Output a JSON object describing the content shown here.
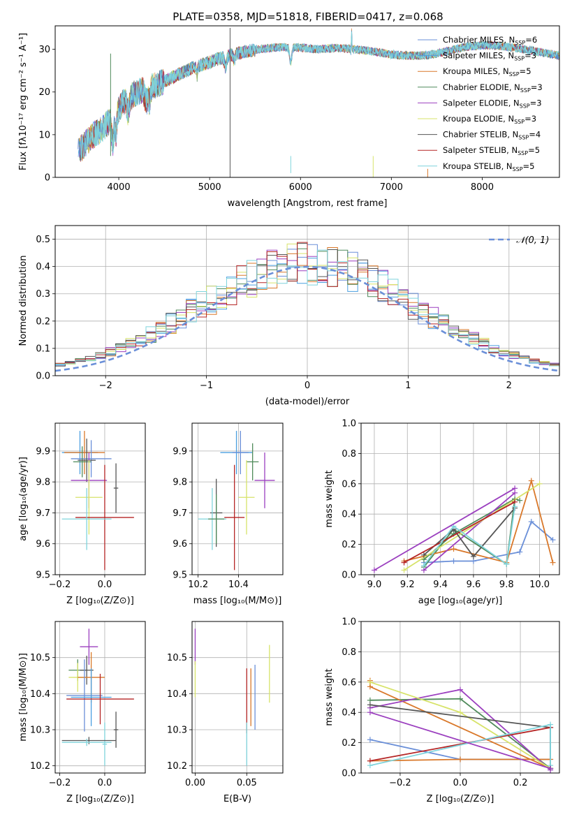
{
  "title": "PLATE=0358, MJD=51818, FIBERID=0417, z=0.068",
  "models": [
    {
      "name": "Chabrier MILES",
      "nssp": "6",
      "color": "#6a8fd8"
    },
    {
      "name": "Salpeter MILES",
      "nssp": "3",
      "color": "#4a9fe0"
    },
    {
      "name": "Kroupa MILES",
      "nssp": "5",
      "color": "#d9782a"
    },
    {
      "name": "Chabrier ELODIE",
      "nssp": "3",
      "color": "#4f8a5a"
    },
    {
      "name": "Salpeter ELODIE",
      "nssp": "3",
      "color": "#9b3fbf"
    },
    {
      "name": "Kroupa ELODIE",
      "nssp": "3",
      "color": "#d7e36a"
    },
    {
      "name": "Chabrier STELIB",
      "nssp": "4",
      "color": "#555555"
    },
    {
      "name": "Salpeter STELIB",
      "nssp": "5",
      "color": "#b52525"
    },
    {
      "name": "Kroupa STELIB",
      "nssp": "5",
      "color": "#7fd4dc"
    }
  ],
  "chart_data": [
    {
      "id": "spectrum",
      "type": "line",
      "xlabel": "wavelength [Angstrom, rest frame]",
      "ylabel": "Flux [fλ10⁻¹⁷ erg cm⁻² s⁻¹ A⁻¹]",
      "xlim": [
        3300,
        8850
      ],
      "ylim": [
        0,
        35.5
      ],
      "xticks": [
        4000,
        5000,
        6000,
        7000,
        8000
      ],
      "yticks": [
        0,
        10,
        20,
        30
      ],
      "grid": false,
      "legend_position": "top-right",
      "continuum": [
        [
          3550,
          6
        ],
        [
          3700,
          9.5
        ],
        [
          3850,
          12
        ],
        [
          3950,
          14.5
        ],
        [
          4050,
          17.5
        ],
        [
          4200,
          20
        ],
        [
          4400,
          21.5
        ],
        [
          4600,
          23.5
        ],
        [
          4800,
          25.5
        ],
        [
          5000,
          27
        ],
        [
          5200,
          28.5
        ],
        [
          5400,
          29.5
        ],
        [
          5600,
          30.2
        ],
        [
          5800,
          30.5
        ],
        [
          6000,
          30.4
        ],
        [
          6200,
          30
        ],
        [
          6400,
          30.3
        ],
        [
          6600,
          30
        ],
        [
          6800,
          29.5
        ],
        [
          7000,
          28.8
        ],
        [
          7200,
          28.5
        ],
        [
          7400,
          28.6
        ],
        [
          7600,
          29.5
        ],
        [
          7800,
          30.5
        ],
        [
          8000,
          31
        ],
        [
          8200,
          30.8
        ],
        [
          8400,
          30.2
        ],
        [
          8600,
          29.5
        ],
        [
          8850,
          28.5
        ]
      ],
      "features": [
        [
          3934,
          4,
          6
        ],
        [
          3969,
          3,
          5
        ],
        [
          4102,
          4,
          3
        ],
        [
          4304,
          6,
          3
        ],
        [
          4340,
          3,
          3
        ],
        [
          4861,
          2,
          2
        ],
        [
          5175,
          4,
          2.5
        ],
        [
          5270,
          3,
          1.5
        ],
        [
          5892,
          4,
          3.5
        ],
        [
          6563,
          2,
          1.5
        ],
        [
          6563,
          1,
          -6
        ]
      ],
      "spikes": [
        [
          3910,
          29,
          5
        ],
        [
          5225,
          35,
          0
        ],
        [
          5893,
          5,
          1
        ],
        [
          6800,
          0,
          5
        ],
        [
          7400,
          0,
          2
        ]
      ]
    },
    {
      "id": "residuals",
      "type": "histogram",
      "xlabel": "(data-model)/error",
      "ylabel": "Normed distribution",
      "xlim": [
        -2.5,
        2.5
      ],
      "ylim": [
        0,
        0.55
      ],
      "xticks": [
        -2,
        -1,
        0,
        1,
        2
      ],
      "yticks": [
        0.0,
        0.1,
        0.2,
        0.3,
        0.4,
        0.5
      ],
      "grid": true,
      "legend_position": "top-right",
      "reference_label": "𝒩(0, 1)",
      "bin_width": 0.1,
      "bin_start": -2.5
    },
    {
      "id": "age-vs-z",
      "type": "scatter",
      "xlabel": "Z [log₁₀(Z/Z⊙)]",
      "ylabel": "age  [log₁₀(age/yr)]",
      "xlim": [
        -0.22,
        0.18
      ],
      "ylim": [
        9.5,
        9.99
      ],
      "xticks": [
        -0.2,
        0.0
      ],
      "yticks": [
        9.5,
        9.6,
        9.7,
        9.8,
        9.9
      ],
      "grid": true,
      "points": [
        {
          "x": -0.11,
          "xerr": 0.08,
          "y": 9.895,
          "yerr": 0.07
        },
        {
          "x": -0.09,
          "xerr": 0.09,
          "y": 9.895,
          "yerr": 0.07
        },
        {
          "x": -0.06,
          "xerr": 0.09,
          "y": 9.875,
          "yerr": 0.06
        },
        {
          "x": -0.1,
          "xerr": 0.04,
          "y": 9.865,
          "yerr": 0.05
        },
        {
          "x": -0.08,
          "xerr": 0.04,
          "y": 9.87,
          "yerr": 0.07
        },
        {
          "x": -0.07,
          "xerr": 0.08,
          "y": 9.805,
          "yerr": 0.09
        },
        {
          "x": 0.05,
          "xerr": 0.01,
          "y": 9.78,
          "yerr": 0.08
        },
        {
          "x": -0.07,
          "xerr": 0.06,
          "y": 9.75,
          "yerr": 0.12
        },
        {
          "x": 0.0,
          "xerr": 0.13,
          "y": 9.685,
          "yerr": 0.17
        },
        {
          "x": -0.08,
          "xerr": 0.11,
          "y": 9.68,
          "yerr": 0.1
        }
      ]
    },
    {
      "id": "age-vs-mass",
      "type": "scatter",
      "xlabel": "mass [log₁₀(M/M⊙)]",
      "ylabel": "",
      "xlim": [
        10.17,
        10.62
      ],
      "ylim": [
        9.5,
        9.99
      ],
      "xticks": [
        10.2,
        10.4
      ],
      "yticks": [
        9.5,
        9.6,
        9.7,
        9.8,
        9.9
      ],
      "grid": true,
      "points": [
        {
          "x": 10.39,
          "xerr": 0.08,
          "y": 9.895,
          "yerr": 0.07
        },
        {
          "x": 10.41,
          "xerr": 0.04,
          "y": 9.895,
          "yerr": 0.07
        },
        {
          "x": 10.47,
          "xerr": 0.03,
          "y": 9.865,
          "yerr": 0.06
        },
        {
          "x": 10.53,
          "xerr": 0.05,
          "y": 9.805,
          "yerr": 0.09
        },
        {
          "x": 10.29,
          "xerr": 0.03,
          "y": 9.7,
          "yerr": 0.11
        },
        {
          "x": 10.44,
          "xerr": 0.04,
          "y": 9.75,
          "yerr": 0.12
        },
        {
          "x": 10.38,
          "xerr": 0.05,
          "y": 9.685,
          "yerr": 0.17
        },
        {
          "x": 10.27,
          "xerr": 0.07,
          "y": 9.68,
          "yerr": 0.1
        },
        {
          "x": 10.29,
          "xerr": 0.04,
          "y": 9.68,
          "yerr": 0.08
        }
      ]
    },
    {
      "id": "weight-vs-age",
      "type": "line",
      "xlabel": "age  [log₁₀(age/yr)]",
      "ylabel": "mass weight",
      "xlim": [
        8.92,
        10.12
      ],
      "ylim": [
        0,
        1.0
      ],
      "xticks": [
        9.0,
        9.2,
        9.4,
        9.6,
        9.8,
        10.0
      ],
      "yticks": [
        0.0,
        0.2,
        0.4,
        0.6,
        0.8,
        1.0
      ],
      "grid": true,
      "series": [
        {
          "x": [
            9.3,
            9.48,
            9.6,
            9.88,
            9.95,
            10.08
          ],
          "y": [
            0.08,
            0.09,
            0.09,
            0.15,
            0.35,
            0.23
          ]
        },
        {
          "x": [
            9.3,
            9.48,
            9.8,
            9.85
          ],
          "y": [
            0.05,
            0.3,
            0.07,
            0.5
          ]
        },
        {
          "x": [
            9.18,
            9.48,
            9.8,
            9.95,
            10.08
          ],
          "y": [
            0.09,
            0.17,
            0.08,
            0.62,
            0.08
          ]
        },
        {
          "x": [
            9.3,
            9.48,
            9.85,
            9.88
          ],
          "y": [
            0.1,
            0.27,
            0.5,
            0.49
          ]
        },
        {
          "x": [
            9.3,
            9.85
          ],
          "y": [
            0.03,
            0.54
          ]
        },
        {
          "x": [
            9.18,
            10.0
          ],
          "y": [
            0.03,
            0.6
          ]
        },
        {
          "x": [
            9.3,
            9.48,
            9.6,
            9.85
          ],
          "y": [
            0.13,
            0.3,
            0.12,
            0.44
          ]
        },
        {
          "x": [
            9.18,
            9.85
          ],
          "y": [
            0.08,
            0.48
          ]
        },
        {
          "x": [
            9.3,
            9.48,
            9.8,
            9.85
          ],
          "y": [
            0.06,
            0.32,
            0.07,
            0.45
          ]
        },
        {
          "x": [
            9.0,
            9.85
          ],
          "y": [
            0.03,
            0.57
          ]
        }
      ]
    },
    {
      "id": "mass-vs-z",
      "type": "scatter",
      "xlabel": "Z [log₁₀(Z/Z⊙)]",
      "ylabel": "mass [log₁₀(M/M⊙)]",
      "xlim": [
        -0.22,
        0.18
      ],
      "ylim": [
        10.18,
        10.6
      ],
      "xticks": [
        -0.2,
        0.0
      ],
      "yticks": [
        10.2,
        10.3,
        10.4,
        10.5
      ],
      "grid": true,
      "points": [
        {
          "x": -0.07,
          "xerr": 0.04,
          "y": 10.53,
          "yerr": 0.05
        },
        {
          "x": -0.12,
          "xerr": 0.04,
          "y": 10.465,
          "yerr": 0.03
        },
        {
          "x": -0.08,
          "xerr": 0.03,
          "y": 10.465,
          "yerr": 0.04
        },
        {
          "x": -0.12,
          "xerr": 0.04,
          "y": 10.445,
          "yerr": 0.04
        },
        {
          "x": -0.06,
          "xerr": 0.06,
          "y": 10.445,
          "yerr": 0.07
        },
        {
          "x": -0.09,
          "xerr": 0.08,
          "y": 10.395,
          "yerr": 0.1
        },
        {
          "x": -0.06,
          "xerr": 0.09,
          "y": 10.39,
          "yerr": 0.08
        },
        {
          "x": -0.02,
          "xerr": 0.15,
          "y": 10.385,
          "yerr": 0.07
        },
        {
          "x": 0.05,
          "xerr": 0.01,
          "y": 10.3,
          "yerr": 0.05
        },
        {
          "x": 0.0,
          "xerr": 0.01,
          "y": 10.26,
          "yerr": 0.06
        },
        {
          "x": -0.07,
          "xerr": 0.12,
          "y": 10.27,
          "yerr": 0.01
        },
        {
          "x": -0.08,
          "xerr": 0.11,
          "y": 10.265,
          "yerr": 0.01
        }
      ]
    },
    {
      "id": "mass-vs-ebv",
      "type": "scatter",
      "xlabel": "E(B-V)",
      "ylabel": "",
      "xlim": [
        -0.003,
        0.085
      ],
      "ylim": [
        10.18,
        10.6
      ],
      "xticks": [
        0.0,
        0.05
      ],
      "yticks": [
        10.2,
        10.3,
        10.4,
        10.5
      ],
      "grid": true,
      "points": [
        {
          "x": 0.0,
          "xerr": 0.0,
          "y": 10.53,
          "yerr": 0.05
        },
        {
          "x": 0.0,
          "xerr": 0.0,
          "y": 10.44,
          "yerr": 0.05
        },
        {
          "x": 0.05,
          "xerr": 0.0,
          "y": 10.38,
          "yerr": 0.09
        },
        {
          "x": 0.054,
          "xerr": 0.0,
          "y": 10.39,
          "yerr": 0.08
        },
        {
          "x": 0.058,
          "xerr": 0.0,
          "y": 10.39,
          "yerr": 0.09
        },
        {
          "x": 0.072,
          "xerr": 0.0,
          "y": 10.455,
          "yerr": 0.08
        },
        {
          "x": 0.05,
          "xerr": 0.0,
          "y": 10.26,
          "yerr": 0.06
        }
      ]
    },
    {
      "id": "weight-vs-z",
      "type": "line",
      "xlabel": "Z [log₁₀(Z/Z⊙)]",
      "ylabel": "mass weight",
      "xlim": [
        -0.33,
        0.33
      ],
      "ylim": [
        0,
        1.0
      ],
      "xticks": [
        -0.2,
        0.0,
        0.2
      ],
      "yticks": [
        0.0,
        0.2,
        0.4,
        0.6,
        0.8,
        1.0
      ],
      "grid": true,
      "series": [
        {
          "x": [
            -0.3,
            0.0,
            0.3,
            0.3
          ],
          "y": [
            0.22,
            0.09,
            0.09,
            0.3
          ]
        },
        {
          "x": [
            -0.3,
            0.0,
            0.3
          ],
          "y": [
            0.48,
            0.49,
            0.03
          ]
        },
        {
          "x": [
            -0.3,
            0.0,
            0.3
          ],
          "y": [
            0.08,
            0.09,
            0.09
          ]
        },
        {
          "x": [
            -0.3,
            -0.3,
            0.3
          ],
          "y": [
            0.61,
            0.57,
            0.03
          ]
        },
        {
          "x": [
            -0.3,
            0.0,
            0.3
          ],
          "y": [
            0.43,
            0.55,
            0.02
          ]
        },
        {
          "x": [
            -0.3,
            0.0,
            0.3
          ],
          "y": [
            0.6,
            0.4,
            0.03
          ]
        },
        {
          "x": [
            -0.3,
            0.3,
            0.3
          ],
          "y": [
            0.45,
            0.3,
            0.03
          ]
        },
        {
          "x": [
            -0.3,
            0.3
          ],
          "y": [
            0.08,
            0.3
          ]
        },
        {
          "x": [
            -0.3,
            0.3,
            0.3
          ],
          "y": [
            0.05,
            0.32,
            0.05
          ]
        },
        {
          "x": [
            -0.3,
            0.3
          ],
          "y": [
            0.4,
            0.03
          ]
        }
      ]
    }
  ]
}
